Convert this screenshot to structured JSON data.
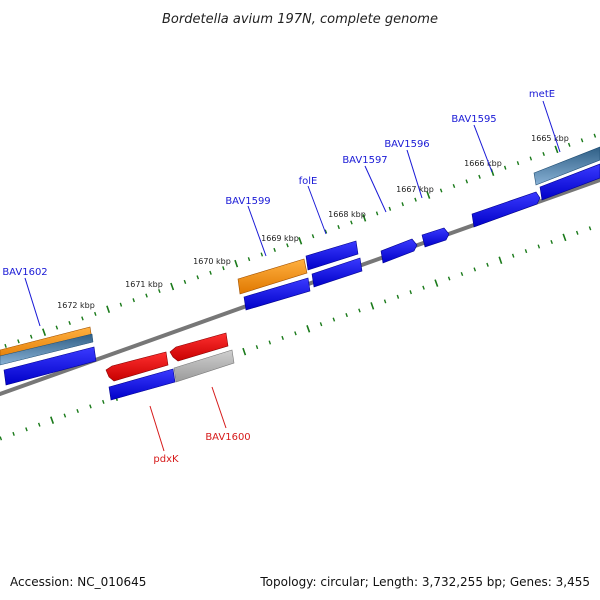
{
  "title": "Bordetella avium 197N, complete genome",
  "footer": {
    "accession": "Accession: NC_010645",
    "summary": "Topology: circular; Length: 3,732,255 bp; Genes: 3,455"
  },
  "kbp_labels": [
    "1665 kbp",
    "1666 kbp",
    "1667 kbp",
    "1668 kbp",
    "1669 kbp",
    "1670 kbp",
    "1671 kbp",
    "1672 kbp"
  ],
  "gene_labels": {
    "metE": "metE",
    "BAV1595": "BAV1595",
    "BAV1596": "BAV1596",
    "BAV1597": "BAV1597",
    "folE": "folE",
    "BAV1599": "BAV1599",
    "BAV1602": "BAV1602",
    "pdxK": "pdxK",
    "BAV1600": "BAV1600"
  },
  "colors": {
    "cds_blue": "#0000e6",
    "rna_orange": "#f08c00",
    "steelblue": "#4a7eaa",
    "red": "#e60000",
    "grey": "#a8a8a8",
    "backbone": "#777777",
    "tick_green": "#1a7a1a"
  }
}
